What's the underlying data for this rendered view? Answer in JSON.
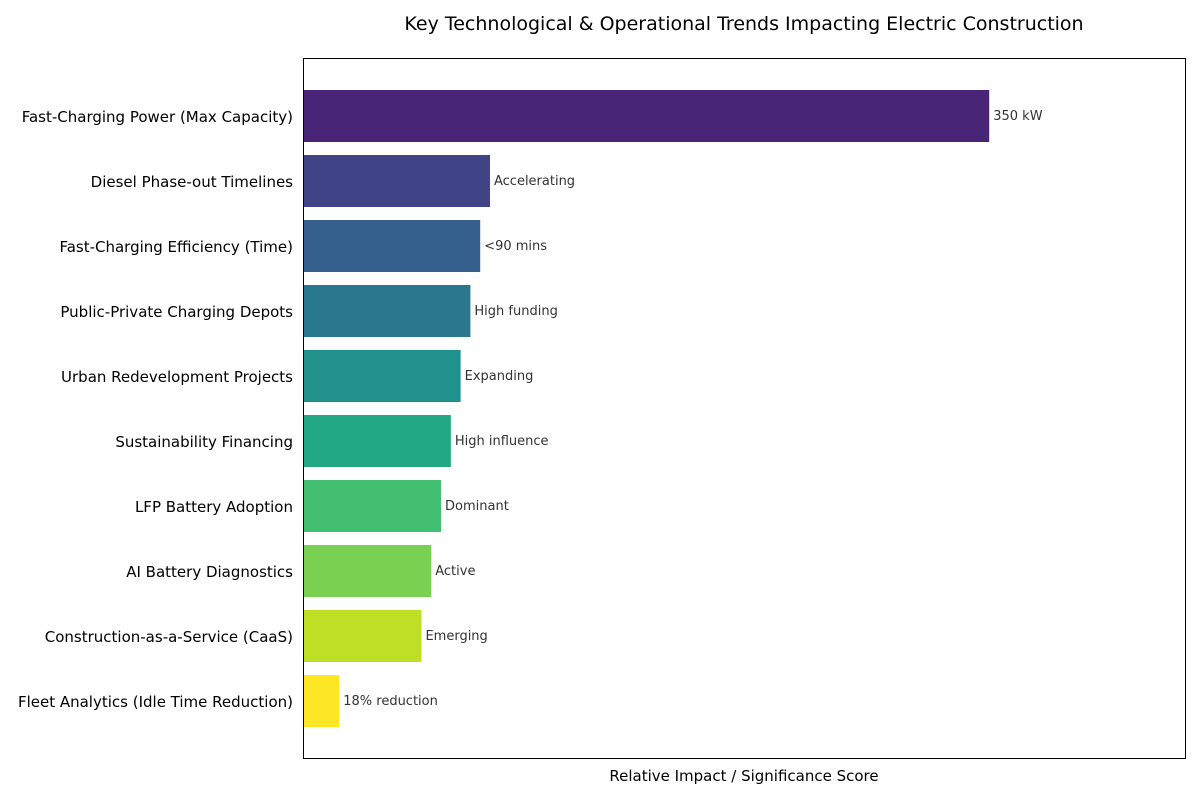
{
  "chart_data": {
    "type": "bar",
    "orientation": "horizontal",
    "title": "Key Technological & Operational Trends Impacting Electric Construction",
    "xlabel": "Relative Impact / Significance Score",
    "ylabel": "",
    "xlim": [
      0,
      9
    ],
    "grid": false,
    "legend": "none",
    "categories": [
      "Fast-Charging Power (Max Capacity)",
      "Diesel Phase-out Timelines",
      "Fast-Charging Efficiency (Time)",
      "Public-Private Charging Depots",
      "Urban Redevelopment Projects",
      "Sustainability Financing",
      "LFP Battery Adoption",
      "AI Battery Diagnostics",
      "Construction-as-a-Service (CaaS)",
      "Fleet Analytics (Idle Time Reduction)"
    ],
    "values": [
      7.0,
      1.9,
      1.8,
      1.7,
      1.6,
      1.5,
      1.4,
      1.3,
      1.2,
      0.36
    ],
    "data_labels": [
      "350 kW",
      "Accelerating",
      "<90 mins",
      "High funding",
      "Expanding",
      "High influence",
      "Dominant",
      "Active",
      "Emerging",
      "18% reduction"
    ],
    "colors": [
      "#482576",
      "#414487",
      "#35608d",
      "#2a788e",
      "#21918c",
      "#22a884",
      "#43bf71",
      "#7ad151",
      "#bddf26",
      "#fde725"
    ]
  }
}
